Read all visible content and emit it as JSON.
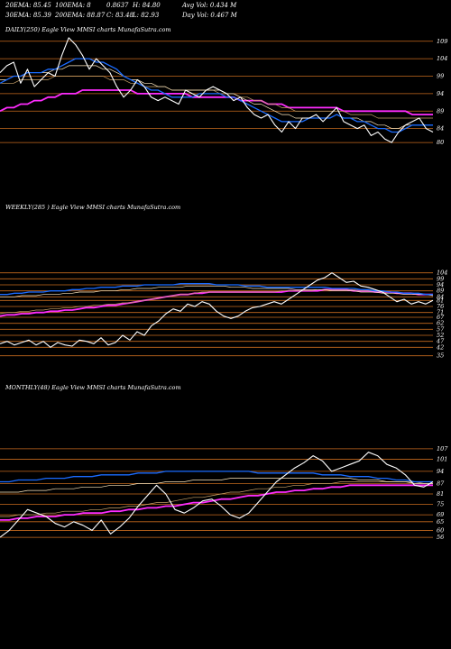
{
  "header": {
    "ema20": "20EMA: 85.45",
    "ema100": "100EMA: 8",
    "ema_overlap": "0.8637",
    "high": "H: 84.80",
    "avg_vol": "Avg Vol: 0.434  M",
    "ema30": "30EMA: 85.39",
    "ema200": "200EMA: 88.87",
    "close": "C: 83.48",
    "low": "L: 82.93",
    "day_vol": "Day Vol: 0.467 M"
  },
  "colors": {
    "background": "#000000",
    "price": "#ffffff",
    "ema_short": "#1a6bff",
    "ema_long": "#ff2cff",
    "ema_mid1": "#ffe9c0",
    "ema_mid2": "#c9a36a",
    "grid": "#c66a1e"
  },
  "chart_data": [
    {
      "type": "line",
      "title": "DAILY(250) Eagle  View  MMSI charts MunafaSutra.com",
      "y_ticks": [
        "109",
        "104",
        "99",
        "94",
        "89",
        "84",
        "80"
      ],
      "ylim": [
        79,
        111
      ],
      "series": [
        {
          "values": [
            100,
            102,
            103,
            97,
            101,
            96,
            98,
            100,
            99,
            105,
            110,
            108,
            105,
            101,
            104,
            102,
            100,
            96,
            93,
            95,
            98,
            96,
            93,
            92,
            93,
            92,
            91,
            95,
            94,
            93,
            95,
            96,
            95,
            94,
            92,
            93,
            90,
            88,
            87,
            88,
            85,
            83,
            86,
            84,
            87,
            87,
            88,
            86,
            88,
            90,
            86,
            85,
            84,
            85,
            82,
            83,
            81,
            80,
            83,
            85,
            86,
            87,
            84,
            83
          ]
        },
        {
          "values": [
            97,
            98,
            99,
            99,
            100,
            100,
            100,
            101,
            101,
            102,
            103,
            104,
            104,
            104,
            103,
            103,
            102,
            101,
            99,
            98,
            97,
            96,
            95,
            95,
            94,
            93,
            93,
            93,
            93,
            94,
            94,
            94,
            94,
            93,
            93,
            92,
            91,
            90,
            89,
            88,
            87,
            86,
            86,
            86,
            86,
            87,
            87,
            87,
            87,
            88,
            87,
            87,
            86,
            86,
            85,
            84,
            84,
            83,
            83,
            84,
            85,
            85,
            85,
            85
          ]
        },
        {
          "values": [
            98,
            98,
            99,
            99,
            100,
            100,
            100,
            100,
            101,
            101,
            102,
            102,
            102,
            102,
            102,
            101,
            101,
            100,
            99,
            98,
            98,
            97,
            97,
            96,
            96,
            95,
            95,
            95,
            95,
            95,
            95,
            95,
            95,
            94,
            94,
            93,
            92,
            91,
            91,
            90,
            89,
            88,
            88,
            87,
            87,
            87,
            87,
            87,
            87,
            88,
            87,
            87,
            87,
            86,
            86,
            85,
            85,
            84,
            84,
            85,
            85,
            85,
            85,
            85
          ]
        },
        {
          "values": [
            97,
            97,
            97,
            98,
            98,
            98,
            98,
            98,
            99,
            99,
            99,
            99,
            99,
            99,
            99,
            99,
            98,
            98,
            98,
            97,
            97,
            96,
            96,
            96,
            96,
            95,
            95,
            95,
            95,
            95,
            95,
            95,
            94,
            94,
            94,
            93,
            93,
            92,
            92,
            91,
            91,
            90,
            90,
            89,
            89,
            89,
            89,
            89,
            89,
            89,
            89,
            88,
            88,
            88,
            88,
            87,
            87,
            87,
            87,
            87,
            87,
            87,
            87,
            87
          ]
        },
        {
          "values": [
            89,
            90,
            90,
            91,
            91,
            92,
            92,
            93,
            93,
            94,
            94,
            94,
            95,
            95,
            95,
            95,
            95,
            95,
            95,
            95,
            94,
            94,
            94,
            94,
            94,
            94,
            94,
            94,
            93,
            93,
            93,
            93,
            93,
            93,
            93,
            92,
            92,
            92,
            92,
            91,
            91,
            91,
            90,
            90,
            90,
            90,
            90,
            90,
            90,
            90,
            89,
            89,
            89,
            89,
            89,
            89,
            89,
            89,
            89,
            89,
            88,
            88,
            88,
            88
          ]
        }
      ]
    },
    {
      "type": "line",
      "title": "WEEKLY(285               ) Eagle  View  MMSI charts MunafaSutra.com",
      "y_ticks": [
        "104",
        "99",
        "94",
        "89",
        "84",
        "81",
        "76",
        "71",
        "67",
        "62",
        "57",
        "52",
        "47",
        "42",
        "35"
      ],
      "ylim": [
        34,
        106
      ],
      "series": [
        {
          "values": [
            45,
            47,
            44,
            46,
            48,
            44,
            47,
            42,
            46,
            44,
            43,
            48,
            47,
            45,
            50,
            44,
            46,
            52,
            48,
            55,
            52,
            60,
            64,
            70,
            74,
            72,
            78,
            76,
            80,
            78,
            72,
            68,
            66,
            68,
            72,
            75,
            76,
            78,
            80,
            78,
            82,
            86,
            90,
            94,
            98,
            100,
            104,
            100,
            96,
            97,
            93,
            92,
            90,
            88,
            84,
            80,
            82,
            78,
            80,
            78,
            81
          ]
        },
        {
          "values": [
            86,
            86,
            87,
            87,
            88,
            88,
            88,
            89,
            89,
            89,
            90,
            90,
            91,
            91,
            92,
            92,
            92,
            93,
            93,
            93,
            94,
            94,
            94,
            94,
            94,
            95,
            95,
            95,
            95,
            95,
            94,
            94,
            94,
            94,
            93,
            93,
            93,
            92,
            92,
            92,
            92,
            92,
            92,
            92,
            92,
            92,
            91,
            91,
            91,
            91,
            90,
            90,
            89,
            89,
            88,
            88,
            87,
            87,
            87,
            86,
            86
          ]
        },
        {
          "values": [
            84,
            84,
            84,
            85,
            85,
            85,
            86,
            86,
            86,
            87,
            87,
            88,
            88,
            88,
            89,
            89,
            89,
            90,
            90,
            91,
            91,
            91,
            92,
            92,
            92,
            92,
            93,
            93,
            93,
            93,
            93,
            93,
            92,
            92,
            92,
            91,
            91,
            91,
            91,
            91,
            91,
            90,
            90,
            90,
            90,
            90,
            89,
            89,
            89,
            89,
            88,
            88,
            88,
            87,
            87,
            87,
            86,
            86,
            86,
            86,
            85
          ]
        },
        {
          "values": [
            70,
            71,
            71,
            72,
            72,
            73,
            73,
            74,
            74,
            75,
            75,
            76,
            76,
            77,
            77,
            78,
            78,
            79,
            79,
            80,
            81,
            82,
            83,
            84,
            85,
            86,
            86,
            87,
            88,
            88,
            88,
            88,
            88,
            88,
            88,
            88,
            88,
            88,
            88,
            89,
            89,
            89,
            89,
            89,
            90,
            90,
            90,
            90,
            90,
            90,
            89,
            89,
            89,
            88,
            88,
            88,
            87,
            87,
            87,
            86,
            86
          ]
        },
        {
          "values": [
            68,
            69,
            69,
            70,
            70,
            71,
            71,
            72,
            72,
            73,
            73,
            74,
            75,
            75,
            76,
            77,
            77,
            78,
            79,
            80,
            81,
            82,
            83,
            84,
            85,
            86,
            86,
            87,
            87,
            88,
            88,
            88,
            88,
            88,
            88,
            88,
            88,
            88,
            88,
            88,
            89,
            89,
            89,
            89,
            89,
            90,
            90,
            90,
            90,
            89,
            89,
            89,
            88,
            88,
            88,
            87,
            87,
            87,
            86,
            86,
            86
          ]
        }
      ]
    },
    {
      "type": "line",
      "title": "MONTHLY(48) Eagle  View  MMSI charts MunafaSutra.com",
      "y_ticks": [
        "107",
        "101",
        "94",
        "87",
        "81",
        "75",
        "69",
        "65",
        "60",
        "56"
      ],
      "ylim": [
        54,
        109
      ],
      "series": [
        {
          "values": [
            56,
            60,
            66,
            72,
            70,
            68,
            64,
            62,
            65,
            63,
            60,
            66,
            58,
            62,
            67,
            74,
            80,
            86,
            81,
            72,
            70,
            73,
            77,
            78,
            74,
            69,
            67,
            70,
            76,
            82,
            88,
            92,
            96,
            99,
            103,
            100,
            94,
            96,
            98,
            100,
            105,
            103,
            98,
            96,
            92,
            86,
            85,
            88
          ]
        },
        {
          "values": [
            88,
            88,
            89,
            89,
            89,
            90,
            90,
            90,
            91,
            91,
            91,
            92,
            92,
            92,
            92,
            93,
            93,
            93,
            94,
            94,
            94,
            94,
            94,
            94,
            94,
            94,
            94,
            94,
            93,
            93,
            93,
            93,
            93,
            93,
            93,
            92,
            92,
            92,
            91,
            91,
            91,
            90,
            90,
            89,
            89,
            88,
            88,
            88
          ]
        },
        {
          "values": [
            82,
            82,
            82,
            83,
            83,
            83,
            84,
            84,
            84,
            85,
            85,
            85,
            86,
            86,
            86,
            87,
            87,
            87,
            88,
            88,
            88,
            89,
            89,
            89,
            89,
            90,
            90,
            90,
            90,
            90,
            90,
            90,
            90,
            90,
            90,
            90,
            90,
            90,
            90,
            89,
            89,
            89,
            88,
            88,
            88,
            87,
            87,
            87
          ]
        },
        {
          "values": [
            68,
            68,
            69,
            69,
            69,
            70,
            70,
            71,
            71,
            71,
            72,
            72,
            73,
            73,
            74,
            74,
            75,
            76,
            76,
            77,
            78,
            79,
            79,
            80,
            81,
            82,
            82,
            83,
            84,
            84,
            85,
            85,
            86,
            86,
            87,
            87,
            87,
            88,
            88,
            88,
            88,
            88,
            88,
            88,
            88,
            88,
            87,
            87
          ]
        },
        {
          "values": [
            66,
            66,
            67,
            67,
            68,
            68,
            68,
            69,
            69,
            70,
            70,
            70,
            71,
            71,
            72,
            72,
            73,
            73,
            74,
            74,
            75,
            76,
            76,
            77,
            78,
            78,
            79,
            80,
            80,
            81,
            82,
            82,
            83,
            83,
            84,
            84,
            85,
            85,
            86,
            86,
            86,
            86,
            86,
            86,
            86,
            86,
            86,
            86
          ]
        }
      ]
    }
  ]
}
